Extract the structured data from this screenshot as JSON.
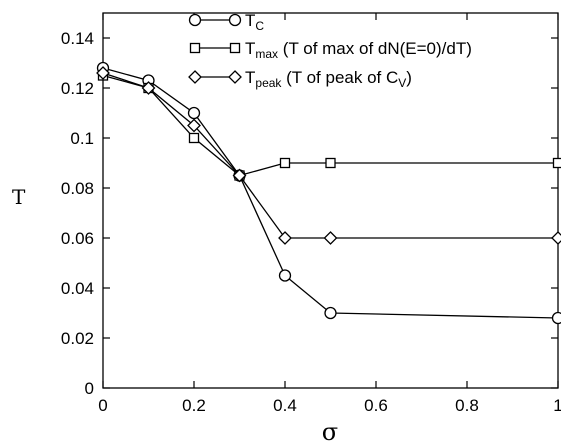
{
  "chart_data": {
    "type": "line",
    "xlabel": "σ",
    "ylabel": "T",
    "xlim": [
      0,
      1
    ],
    "ylim": [
      0,
      0.15
    ],
    "grid": false,
    "legend_placement": "top-right",
    "x_ticks": [
      "0",
      "0.2",
      "0.4",
      "0.6",
      "0.8",
      "1"
    ],
    "y_ticks": [
      "0",
      "0.02",
      "0.04",
      "0.06",
      "0.08",
      "0.1",
      "0.12",
      "0.14"
    ],
    "series": [
      {
        "name": "T_C",
        "legend": {
          "main": "T",
          "sub": "C",
          "rest": ""
        },
        "marker": "circle",
        "x": [
          0,
          0.1,
          0.2,
          0.3,
          0.4,
          0.5,
          1
        ],
        "y": [
          0.128,
          0.123,
          0.11,
          0.085,
          0.045,
          0.03,
          0.028
        ]
      },
      {
        "name": "T_max (T of max of dN(E=0)/dT)",
        "legend": {
          "main": "T",
          "sub": "max",
          "rest": " (T of max of dN(E=0)/dT)"
        },
        "marker": "square",
        "x": [
          0,
          0.1,
          0.2,
          0.3,
          0.4,
          0.5,
          1
        ],
        "y": [
          0.125,
          0.12,
          0.1,
          0.085,
          0.09,
          0.09,
          0.09
        ]
      },
      {
        "name": "T_peak (T of peak of C_V)",
        "legend": {
          "main": "T",
          "sub": "peak",
          "rest": " (T of peak of C",
          "sub2": "V",
          "end": ")"
        },
        "marker": "diamond",
        "x": [
          0,
          0.1,
          0.2,
          0.3,
          0.4,
          0.5,
          1
        ],
        "y": [
          0.126,
          0.12,
          0.105,
          0.085,
          0.06,
          0.06,
          0.06
        ]
      }
    ]
  }
}
